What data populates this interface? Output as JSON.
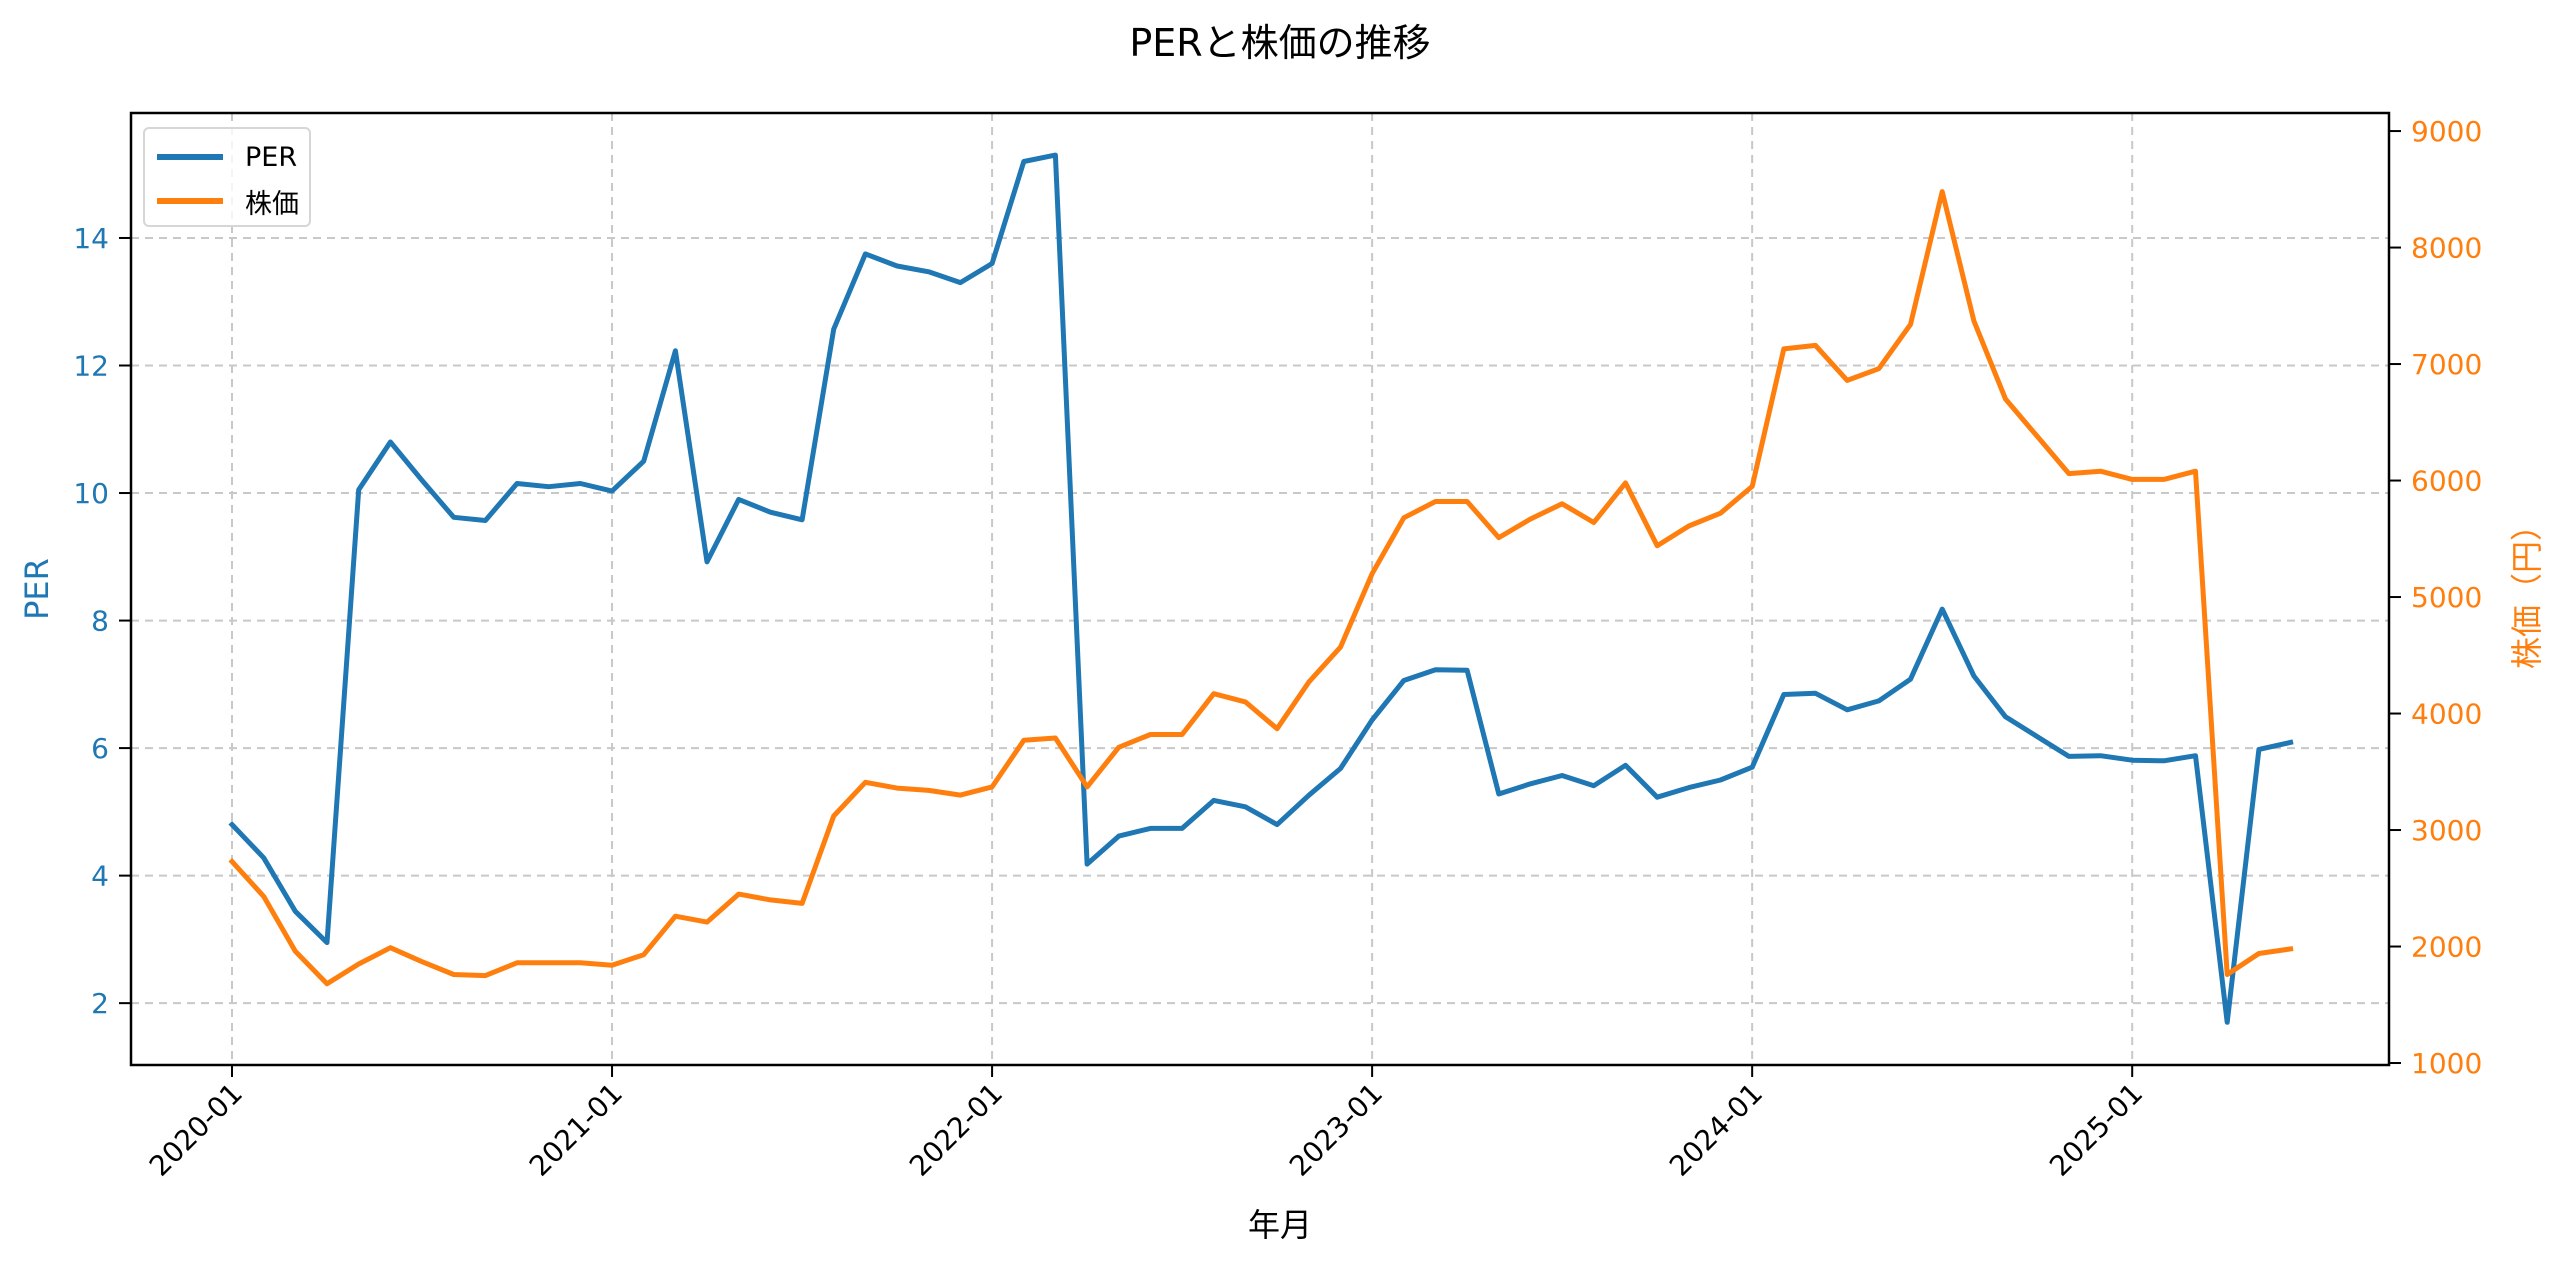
{
  "title": "PERと株価の推移",
  "xlabel": "年月",
  "ylabel_left": "PER",
  "ylabel_right": "株価（円）",
  "legend": [
    {
      "label": "PER",
      "color": "#1f77b4"
    },
    {
      "label": "株価",
      "color": "#ff7f0e"
    }
  ],
  "colors": {
    "per": "#1f77b4",
    "price": "#ff7f0e",
    "grid": "#c8c8c8",
    "axis": "#000000"
  },
  "chart_data": {
    "type": "line",
    "title": "PERと株価の推移",
    "xlabel": "年月",
    "ylabel": "PER",
    "ylabel_secondary": "株価（円）",
    "x_tick_labels": [
      "2020-01",
      "2021-01",
      "2022-01",
      "2023-01",
      "2024-01",
      "2025-01"
    ],
    "y_ticks_left": [
      2,
      4,
      6,
      8,
      10,
      12,
      14
    ],
    "y_ticks_right": [
      1000,
      2000,
      3000,
      4000,
      5000,
      6000,
      7000,
      8000,
      9000
    ],
    "ylim": [
      1.03,
      15.96
    ],
    "ylim_secondary": [
      983,
      9155
    ],
    "grid": true,
    "legend_position": "upper left",
    "x": [
      "2020-01",
      "2020-02",
      "2020-03",
      "2020-04",
      "2020-05",
      "2020-06",
      "2020-07",
      "2020-08",
      "2020-09",
      "2020-10",
      "2020-11",
      "2020-12",
      "2021-01",
      "2021-02",
      "2021-03",
      "2021-04",
      "2021-05",
      "2021-06",
      "2021-07",
      "2021-08",
      "2021-09",
      "2021-10",
      "2021-11",
      "2021-12",
      "2022-01",
      "2022-02",
      "2022-03",
      "2022-04",
      "2022-05",
      "2022-06",
      "2022-07",
      "2022-08",
      "2022-09",
      "2022-10",
      "2022-11",
      "2022-12",
      "2023-01",
      "2023-02",
      "2023-03",
      "2023-04",
      "2023-05",
      "2023-06",
      "2023-07",
      "2023-08",
      "2023-09",
      "2023-10",
      "2023-11",
      "2023-12",
      "2024-01",
      "2024-02",
      "2024-03",
      "2024-04",
      "2024-05",
      "2024-06",
      "2024-07",
      "2024-08",
      "2024-09",
      "2024-10",
      "2024-11",
      "2024-12",
      "2025-01",
      "2025-02",
      "2025-03",
      "2025-04",
      "2025-05",
      "2025-06"
    ],
    "series": [
      {
        "name": "PER",
        "axis": "left",
        "color": "#1f77b4",
        "values": [
          4.8,
          4.28,
          3.44,
          2.95,
          10.05,
          10.8,
          10.2,
          9.62,
          9.57,
          10.15,
          10.1,
          10.15,
          10.03,
          10.5,
          12.23,
          8.92,
          9.9,
          9.7,
          9.58,
          12.57,
          13.75,
          13.56,
          13.47,
          13.3,
          13.6,
          15.2,
          15.3,
          4.18,
          4.62,
          4.74,
          4.74,
          5.18,
          5.08,
          4.8,
          5.26,
          5.68,
          6.44,
          7.06,
          7.23,
          7.22,
          5.28,
          5.44,
          5.57,
          5.41,
          5.73,
          5.23,
          5.38,
          5.5,
          5.7,
          6.84,
          6.86,
          6.6,
          6.74,
          7.08,
          8.18,
          7.13,
          6.49,
          6.18,
          5.87,
          5.88,
          5.81,
          5.8,
          5.88,
          1.7,
          5.98,
          6.09
        ]
      },
      {
        "name": "株価",
        "axis": "right",
        "color": "#ff7f0e",
        "values": [
          2730,
          2430,
          1960,
          1680,
          1850,
          1990,
          1870,
          1760,
          1750,
          1860,
          1860,
          1860,
          1840,
          1930,
          2260,
          2210,
          2450,
          2400,
          2370,
          3120,
          3410,
          3360,
          3340,
          3300,
          3370,
          3770,
          3790,
          3370,
          3710,
          3820,
          3820,
          4170,
          4100,
          3870,
          4270,
          4570,
          5200,
          5680,
          5820,
          5820,
          5510,
          5670,
          5800,
          5640,
          5980,
          5440,
          5610,
          5720,
          5950,
          7130,
          7160,
          6860,
          6960,
          7340,
          8480,
          7370,
          6700,
          6380,
          6060,
          6080,
          6010,
          6010,
          6080,
          1760,
          1940,
          1980
        ]
      }
    ]
  }
}
